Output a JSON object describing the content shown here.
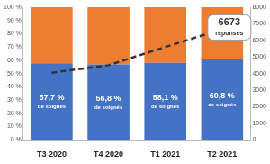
{
  "chart_data": {
    "type": "bar",
    "stacked": true,
    "data_labels": true,
    "grid": false,
    "categories": [
      "T3 2020",
      "T4 2020",
      "T1 2021",
      "T2 2021"
    ],
    "series": [
      {
        "type": "bar",
        "color": "#4472c4",
        "values": [
          57.7,
          56.8,
          58.1,
          60.8
        ],
        "value_labels": [
          "57,7 %",
          "56,8 %",
          "58,1 %",
          "60,8 %"
        ],
        "value_label_caption": "de soignés"
      },
      {
        "type": "bar",
        "color": "#ed7d31",
        "values": [
          42.3,
          43.2,
          41.9,
          39.2
        ]
      },
      {
        "type": "line",
        "axis": "y2",
        "color": "#333333",
        "line_style": "dashed",
        "marker": "none",
        "values": [
          4050,
          4500,
          5600,
          6673
        ]
      }
    ],
    "ylim": [
      0,
      100
    ],
    "yticks": [
      {
        "value": 0,
        "label": "0 %"
      },
      {
        "value": 10,
        "label": "10 %"
      },
      {
        "value": 20,
        "label": "20 %"
      },
      {
        "value": 30,
        "label": "30 %"
      },
      {
        "value": 40,
        "label": "40 %"
      },
      {
        "value": 50,
        "label": "50 %"
      },
      {
        "value": 60,
        "label": "60 %"
      },
      {
        "value": 70,
        "label": "70 %"
      },
      {
        "value": 80,
        "label": "80 %"
      },
      {
        "value": 90,
        "label": "90 %"
      },
      {
        "value": 100,
        "label": "100 %"
      }
    ],
    "y2lim": [
      0,
      8000
    ],
    "y2ticks": [
      0,
      1000,
      2000,
      3000,
      4000,
      5000,
      6000,
      7000,
      8000
    ],
    "annotations": [
      {
        "x": "T2 2021",
        "value": 6673,
        "label": "6673",
        "text": "réponses"
      }
    ]
  }
}
